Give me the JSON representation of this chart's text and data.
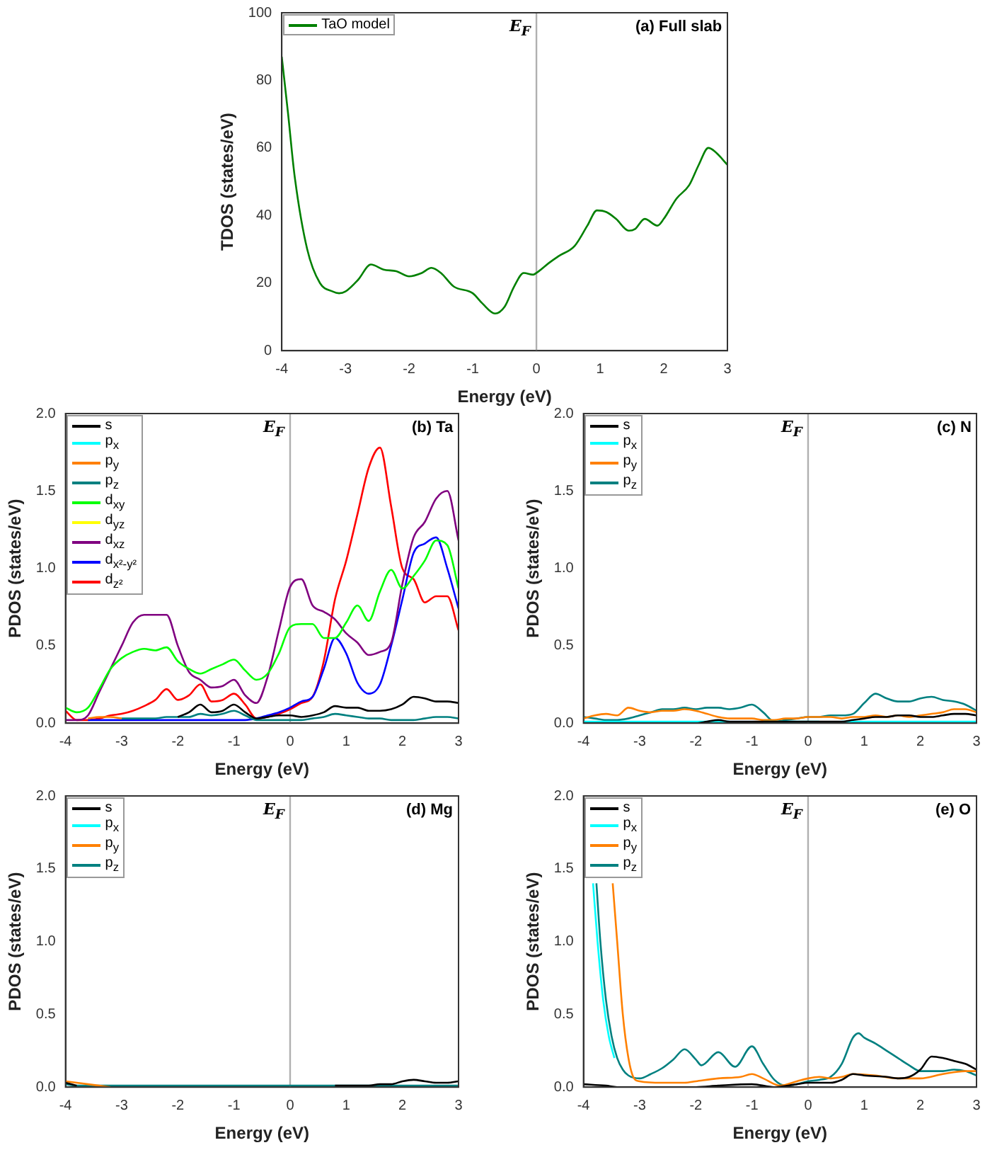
{
  "chart_data": [
    {
      "type": "line",
      "title": "(a) Full slab",
      "xlabel": "Energy (eV)",
      "ylabel": "TDOS (states/eV)",
      "xlim": [
        -4,
        3
      ],
      "xticks": [
        -4,
        -3,
        -2,
        -1,
        0,
        1,
        2,
        3
      ],
      "ylim": [
        0,
        100
      ],
      "yticks": [
        0,
        20,
        40,
        60,
        80,
        100
      ],
      "legend": "top left",
      "grid": false,
      "ref_lines": [
        {
          "axis": "x",
          "value": 0,
          "label": "E$_{F}$",
          "color": "#b0b0b0"
        }
      ],
      "x": [
        -4,
        -3.9,
        -3.8,
        -3.6,
        -3.4,
        -3.2,
        -3.1,
        -3,
        -2.8,
        -2.6,
        -2.4,
        -2.2,
        -2,
        -1.8,
        -1.65,
        -1.5,
        -1.3,
        -1,
        -0.85,
        -0.65,
        -0.5,
        -0.35,
        -0.2,
        -0.05,
        0,
        0.2,
        0.35,
        0.6,
        0.8,
        0.95,
        1.1,
        1.25,
        1.45,
        1.55,
        1.7,
        1.9,
        2,
        2.2,
        2.4,
        2.55,
        2.7,
        2.8,
        3
      ],
      "series": [
        {
          "name": "TaO model",
          "color": "#008000",
          "values": [
            87,
            70,
            52,
            30,
            20,
            17.5,
            17,
            17.5,
            21,
            25.5,
            24,
            23.5,
            22,
            23,
            24.5,
            23,
            19,
            17,
            14,
            11,
            13,
            19,
            23,
            22.5,
            23,
            26,
            28,
            31,
            37,
            41.5,
            41,
            39,
            35.5,
            36,
            39,
            37,
            39,
            45,
            49,
            55,
            60,
            59,
            55
          ]
        }
      ]
    },
    {
      "type": "line",
      "title": "(b) Ta",
      "xlabel": "Energy (eV)",
      "ylabel": "PDOS (states/eV)",
      "xlim": [
        -4,
        3
      ],
      "xticks": [
        -4,
        -3,
        -2,
        -1,
        0,
        1,
        2,
        3
      ],
      "ylim": [
        0,
        2
      ],
      "yticks": [
        {
          "value": 0,
          "label": "0.0"
        },
        {
          "value": 0.5,
          "label": "0.5"
        },
        {
          "value": 1,
          "label": "1.0"
        },
        {
          "value": 1.5,
          "label": "1.5"
        },
        {
          "value": 2,
          "label": "2.0"
        }
      ],
      "legend": "top left",
      "grid": false,
      "ref_lines": [
        {
          "axis": "x",
          "value": 0,
          "label": "E$_{F}$",
          "color": "#b0b0b0"
        }
      ],
      "x": [
        -4,
        -3.8,
        -3.6,
        -3.4,
        -3.2,
        -3,
        -2.8,
        -2.6,
        -2.4,
        -2.2,
        -2,
        -1.8,
        -1.6,
        -1.4,
        -1.2,
        -1,
        -0.8,
        -0.6,
        -0.4,
        -0.2,
        0,
        0.2,
        0.4,
        0.6,
        0.8,
        1,
        1.2,
        1.4,
        1.6,
        1.8,
        2,
        2.2,
        2.4,
        2.6,
        2.8,
        3
      ],
      "series": [
        {
          "name": "s",
          "color": "#000000",
          "values": [
            null,
            null,
            null,
            null,
            null,
            null,
            null,
            null,
            null,
            null,
            0.04,
            0.07,
            0.12,
            0.07,
            0.08,
            0.12,
            0.07,
            0.03,
            0.04,
            0.05,
            0.05,
            0.04,
            0.05,
            0.07,
            0.11,
            0.1,
            0.1,
            0.08,
            0.08,
            0.09,
            0.12,
            0.17,
            0.16,
            0.14,
            0.14,
            0.13
          ]
        },
        {
          "name": "p$_{x}$",
          "color": "#00ffff",
          "values": [
            null,
            null,
            null,
            null,
            null,
            null,
            null,
            null,
            null,
            null,
            null,
            null,
            null,
            null,
            null,
            null,
            null,
            null,
            null,
            null,
            null,
            null,
            null,
            null,
            null,
            null,
            null,
            null,
            null,
            null,
            null,
            null,
            null,
            null,
            null,
            null
          ]
        },
        {
          "name": "p$_{y}$",
          "color": "#ff8000",
          "values": [
            null,
            null,
            0.03,
            0.04,
            0.04,
            0.03,
            null,
            null,
            null,
            null,
            null,
            null,
            null,
            null,
            null,
            null,
            null,
            null,
            null,
            null,
            null,
            null,
            null,
            null,
            null,
            null,
            null,
            null,
            null,
            null,
            null,
            null,
            null,
            null,
            null,
            null
          ]
        },
        {
          "name": "p$_{z}$",
          "color": "#008080",
          "values": [
            null,
            null,
            null,
            null,
            null,
            0.03,
            0.03,
            0.03,
            0.03,
            0.04,
            0.04,
            0.04,
            0.06,
            0.05,
            0.06,
            0.08,
            0.05,
            0.02,
            0.02,
            0.02,
            0.02,
            0.02,
            0.03,
            0.04,
            0.06,
            0.05,
            0.04,
            0.03,
            0.03,
            0.02,
            0.02,
            0.02,
            0.03,
            0.04,
            0.04,
            0.03
          ]
        },
        {
          "name": "d$_{xy}$",
          "color": "#00ff00",
          "values": [
            0.1,
            0.07,
            0.1,
            0.22,
            0.35,
            0.42,
            0.46,
            0.48,
            0.47,
            0.49,
            0.4,
            0.35,
            0.32,
            0.35,
            0.38,
            0.41,
            0.34,
            0.28,
            0.32,
            0.45,
            0.62,
            0.64,
            0.64,
            0.55,
            0.55,
            0.65,
            0.76,
            0.66,
            0.85,
            0.99,
            0.87,
            0.95,
            1.05,
            1.18,
            1.15,
            0.87
          ]
        },
        {
          "name": "d$_{yz}$",
          "color": "#ffff00",
          "values": [
            null,
            null,
            null,
            null,
            null,
            null,
            null,
            null,
            null,
            null,
            null,
            null,
            null,
            null,
            null,
            null,
            null,
            null,
            null,
            null,
            null,
            null,
            null,
            null,
            null,
            null,
            null,
            null,
            null,
            null,
            null,
            null,
            null,
            null,
            null,
            null
          ]
        },
        {
          "name": "d$_{xz}$",
          "color": "#800080",
          "values": [
            0.02,
            0.02,
            0.05,
            0.2,
            0.35,
            0.5,
            0.65,
            0.7,
            0.7,
            0.7,
            0.5,
            0.33,
            0.28,
            0.23,
            0.24,
            0.28,
            0.18,
            0.13,
            0.3,
            0.6,
            0.88,
            0.93,
            0.76,
            0.72,
            0.67,
            0.58,
            0.52,
            0.44,
            0.46,
            0.52,
            0.9,
            1.2,
            1.3,
            1.45,
            1.5,
            1.18
          ]
        },
        {
          "name": "d$_{x²-y²}$",
          "color": "#0000ff",
          "values": [
            null,
            null,
            0.02,
            0.02,
            0.02,
            0.02,
            0.02,
            0.02,
            0.02,
            0.02,
            0.02,
            0.02,
            0.02,
            0.02,
            0.02,
            0.02,
            0.02,
            0.03,
            0.05,
            0.07,
            0.1,
            0.14,
            0.17,
            0.35,
            0.55,
            0.45,
            0.26,
            0.19,
            0.25,
            0.5,
            0.8,
            1.1,
            1.16,
            1.2,
            1.0,
            0.74
          ]
        },
        {
          "name": "d$_{z²}$",
          "color": "#ff0000",
          "values": [
            0.08,
            0.02,
            0.02,
            0.03,
            0.05,
            0.06,
            0.08,
            0.11,
            0.15,
            0.22,
            0.15,
            0.18,
            0.25,
            0.14,
            0.15,
            0.19,
            0.12,
            0.03,
            0.04,
            0.06,
            0.09,
            0.13,
            0.17,
            0.4,
            0.8,
            1.05,
            1.35,
            1.65,
            1.78,
            1.4,
            1.0,
            0.93,
            0.78,
            0.82,
            0.82,
            0.6
          ]
        }
      ]
    },
    {
      "type": "line",
      "title": "(c) N",
      "xlabel": "Energy (eV)",
      "ylabel": "PDOS (states/eV)",
      "xlim": [
        -4,
        3
      ],
      "xticks": [
        -4,
        -3,
        -2,
        -1,
        0,
        1,
        2,
        3
      ],
      "ylim": [
        0,
        2
      ],
      "yticks": [
        {
          "value": 0,
          "label": "0.0"
        },
        {
          "value": 0.5,
          "label": "0.5"
        },
        {
          "value": 1,
          "label": "1.0"
        },
        {
          "value": 1.5,
          "label": "1.5"
        },
        {
          "value": 2,
          "label": "2.0"
        }
      ],
      "legend": "top left",
      "grid": false,
      "ref_lines": [
        {
          "axis": "x",
          "value": 0,
          "label": "E$_{F}$",
          "color": "#b0b0b0"
        }
      ],
      "x": [
        -4,
        -3.8,
        -3.6,
        -3.4,
        -3.2,
        -3,
        -2.8,
        -2.6,
        -2.4,
        -2.2,
        -2,
        -1.8,
        -1.6,
        -1.4,
        -1.2,
        -1,
        -0.8,
        -0.6,
        -0.4,
        -0.2,
        0,
        0.2,
        0.4,
        0.6,
        0.8,
        1,
        1.2,
        1.4,
        1.6,
        1.8,
        2,
        2.2,
        2.4,
        2.6,
        2.8,
        3
      ],
      "series": [
        {
          "name": "s",
          "color": "#000000",
          "values": [
            0,
            0,
            0,
            0,
            0,
            0,
            0,
            0,
            0,
            0,
            0,
            0.01,
            0.02,
            0.01,
            0.01,
            0.01,
            0.01,
            0.01,
            0.01,
            0.01,
            0.01,
            0.01,
            0.01,
            0.01,
            0.02,
            0.03,
            0.04,
            0.04,
            0.05,
            0.05,
            0.04,
            0.04,
            0.05,
            0.06,
            0.06,
            0.05
          ]
        },
        {
          "name": "p$_{x}$",
          "color": "#00ffff",
          "values": [
            0.01,
            0.01,
            0.01,
            0.01,
            0.01,
            0.01,
            0.01,
            0.01,
            0.01,
            0.01,
            0.01,
            0.01,
            0.01,
            0.01,
            null,
            null,
            0.01,
            0.01,
            0.01,
            0.01,
            0.01,
            0.01,
            null,
            0.01,
            0.01,
            0.01,
            0.01,
            0.01,
            0.01,
            0.01,
            0.01,
            0.01,
            0.01,
            0.01,
            0.01,
            0.01
          ]
        },
        {
          "name": "p$_{y}$",
          "color": "#ff8000",
          "values": [
            0.03,
            0.05,
            0.06,
            0.05,
            0.1,
            0.08,
            0.07,
            0.08,
            0.08,
            0.09,
            0.08,
            0.06,
            0.04,
            0.03,
            0.03,
            0.03,
            0.02,
            0.02,
            0.03,
            0.03,
            0.04,
            0.04,
            0.04,
            0.03,
            0.04,
            0.04,
            0.05,
            0.04,
            0.05,
            0.04,
            0.05,
            0.06,
            0.07,
            0.09,
            0.09,
            0.07
          ]
        },
        {
          "name": "p$_{z}$",
          "color": "#008080",
          "values": [
            0.04,
            0.03,
            0.02,
            0.02,
            0.03,
            0.05,
            0.07,
            0.09,
            0.09,
            0.1,
            0.09,
            0.1,
            0.1,
            0.09,
            0.1,
            0.12,
            0.07,
            0.01,
            0.02,
            0.03,
            0.04,
            0.04,
            0.05,
            0.05,
            0.06,
            0.13,
            0.19,
            0.16,
            0.14,
            0.14,
            0.16,
            0.17,
            0.15,
            0.14,
            0.12,
            0.08
          ]
        }
      ]
    },
    {
      "type": "line",
      "title": "(d) Mg",
      "xlabel": "Energy (eV)",
      "ylabel": "PDOS (states/eV)",
      "xlim": [
        -4,
        3
      ],
      "xticks": [
        -4,
        -3,
        -2,
        -1,
        0,
        1,
        2,
        3
      ],
      "ylim": [
        0,
        2
      ],
      "yticks": [
        {
          "value": 0,
          "label": "0.0"
        },
        {
          "value": 0.5,
          "label": "0.5"
        },
        {
          "value": 1,
          "label": "1.0"
        },
        {
          "value": 1.5,
          "label": "1.5"
        },
        {
          "value": 2,
          "label": "2.0"
        }
      ],
      "legend": "top left",
      "grid": false,
      "ref_lines": [
        {
          "axis": "x",
          "value": 0,
          "label": "E$_{F}$",
          "color": "#b0b0b0"
        }
      ],
      "x": [
        -4,
        -3.8,
        -3.6,
        -3.4,
        -3.2,
        -3,
        -2.8,
        -2.6,
        -2.4,
        -2.2,
        -2,
        -1.8,
        -1.6,
        -1.4,
        -1.2,
        -1,
        -0.8,
        -0.6,
        -0.4,
        -0.2,
        0,
        0.2,
        0.4,
        0.6,
        0.8,
        1,
        1.2,
        1.4,
        1.6,
        1.8,
        2,
        2.2,
        2.4,
        2.6,
        2.8,
        3
      ],
      "series": [
        {
          "name": "s",
          "color": "#000000",
          "values": [
            0.03,
            0.01,
            null,
            null,
            null,
            null,
            null,
            null,
            null,
            null,
            null,
            null,
            null,
            null,
            null,
            null,
            null,
            null,
            null,
            null,
            null,
            null,
            null,
            null,
            0.01,
            0.01,
            0.01,
            0.01,
            0.02,
            0.02,
            0.04,
            0.05,
            0.04,
            0.03,
            0.03,
            0.04
          ]
        },
        {
          "name": "p$_{x}$",
          "color": "#00ffff",
          "values": [
            null,
            null,
            null,
            null,
            null,
            null,
            null,
            null,
            null,
            null,
            null,
            null,
            null,
            null,
            null,
            null,
            null,
            null,
            null,
            null,
            null,
            null,
            null,
            null,
            null,
            null,
            null,
            null,
            null,
            null,
            null,
            null,
            null,
            null,
            null,
            null
          ]
        },
        {
          "name": "p$_{y}$",
          "color": "#ff8000",
          "values": [
            0.04,
            0.03,
            0.02,
            0.01,
            0,
            null,
            null,
            null,
            null,
            null,
            null,
            null,
            null,
            null,
            null,
            null,
            null,
            null,
            null,
            null,
            null,
            null,
            null,
            null,
            null,
            null,
            null,
            null,
            null,
            null,
            null,
            null,
            null,
            null,
            null,
            null
          ]
        },
        {
          "name": "p$_{z}$",
          "color": "#008080",
          "values": [
            0.02,
            0.01,
            0.01,
            0.01,
            0.01,
            0.01,
            0.01,
            0.01,
            0.01,
            0.01,
            0.01,
            0.01,
            0.01,
            0.01,
            0.01,
            0.01,
            0.01,
            0.01,
            0.01,
            0.01,
            0.01,
            0.01,
            0.01,
            0.01,
            0.01,
            0.01,
            0.01,
            0.01,
            0.01,
            0.01,
            0.01,
            0.01,
            0.01,
            0.01,
            0.01,
            0.01
          ]
        }
      ]
    },
    {
      "type": "line",
      "title": "(e) O",
      "xlabel": "Energy (eV)",
      "ylabel": "PDOS (states/eV)",
      "xlim": [
        -4,
        3
      ],
      "xticks": [
        -4,
        -3,
        -2,
        -1,
        0,
        1,
        2,
        3
      ],
      "ylim": [
        0,
        2
      ],
      "yticks": [
        {
          "value": 0,
          "label": "0.0"
        },
        {
          "value": 0.5,
          "label": "0.5"
        },
        {
          "value": 1,
          "label": "1.0"
        },
        {
          "value": 1.5,
          "label": "1.5"
        },
        {
          "value": 2,
          "label": "2.0"
        }
      ],
      "legend": "top left",
      "grid": false,
      "ref_lines": [
        {
          "axis": "x",
          "value": 0,
          "label": "E$_{F}$",
          "color": "#b0b0b0"
        }
      ],
      "series": [
        {
          "name": "s",
          "color": "#000000",
          "x": [
            -4,
            -3.6,
            -3.4,
            -2,
            -1.6,
            -1,
            -0.6,
            -0.2,
            0,
            0.4,
            0.6,
            0.8,
            1,
            1.4,
            1.6,
            1.8,
            2,
            2.2,
            2.4,
            2.6,
            2.8,
            3
          ],
          "values": [
            0.02,
            0.01,
            0,
            0,
            0.01,
            0.02,
            0,
            0.02,
            0.03,
            0.03,
            0.05,
            0.09,
            0.08,
            0.07,
            0.06,
            0.07,
            0.12,
            0.21,
            0.2,
            0.18,
            0.16,
            0.12
          ]
        },
        {
          "name": "p$_{x}$",
          "color": "#00ffff",
          "x": [
            -3.83,
            -3.75,
            -3.65,
            -3.55,
            -3.45
          ],
          "values": [
            1.4,
            1.0,
            0.6,
            0.35,
            0.2
          ]
        },
        {
          "name": "p$_{y}$",
          "color": "#ff8000",
          "x": [
            -3.48,
            -3.4,
            -3.3,
            -3.2,
            -3.1,
            -3,
            -2.6,
            -2.2,
            -2,
            -1.6,
            -1.2,
            -1,
            -0.8,
            -0.5,
            -0.2,
            0,
            0.2,
            0.4,
            0.6,
            0.8,
            1.2,
            1.6,
            2,
            2.4,
            2.8,
            3
          ],
          "values": [
            1.4,
            1.0,
            0.5,
            0.2,
            0.06,
            0.04,
            0.03,
            0.03,
            0.04,
            0.06,
            0.07,
            0.09,
            0.06,
            0.01,
            0.04,
            0.06,
            0.07,
            0.06,
            0.07,
            0.09,
            0.08,
            0.06,
            0.06,
            0.09,
            0.11,
            0.11
          ]
        },
        {
          "name": "p$_{z}$",
          "color": "#008080",
          "x": [
            -3.77,
            -3.7,
            -3.6,
            -3.5,
            -3.4,
            -3.3,
            -3.2,
            -3,
            -2.8,
            -2.6,
            -2.4,
            -2.2,
            -2,
            -1.9,
            -1.6,
            -1.3,
            -1,
            -0.8,
            -0.6,
            -0.4,
            -0.2,
            0,
            0.2,
            0.4,
            0.6,
            0.8,
            0.9,
            1,
            1.2,
            1.4,
            1.6,
            1.8,
            2,
            2.2,
            2.4,
            2.6,
            2.8,
            3
          ],
          "values": [
            1.4,
            1.0,
            0.6,
            0.35,
            0.2,
            0.12,
            0.08,
            0.06,
            0.09,
            0.13,
            0.19,
            0.26,
            0.19,
            0.15,
            0.24,
            0.14,
            0.28,
            0.16,
            0.05,
            0.01,
            0.02,
            0.04,
            0.05,
            0.07,
            0.16,
            0.34,
            0.37,
            0.34,
            0.3,
            0.25,
            0.2,
            0.15,
            0.11,
            0.11,
            0.11,
            0.12,
            0.11,
            0.08
          ]
        }
      ]
    }
  ]
}
